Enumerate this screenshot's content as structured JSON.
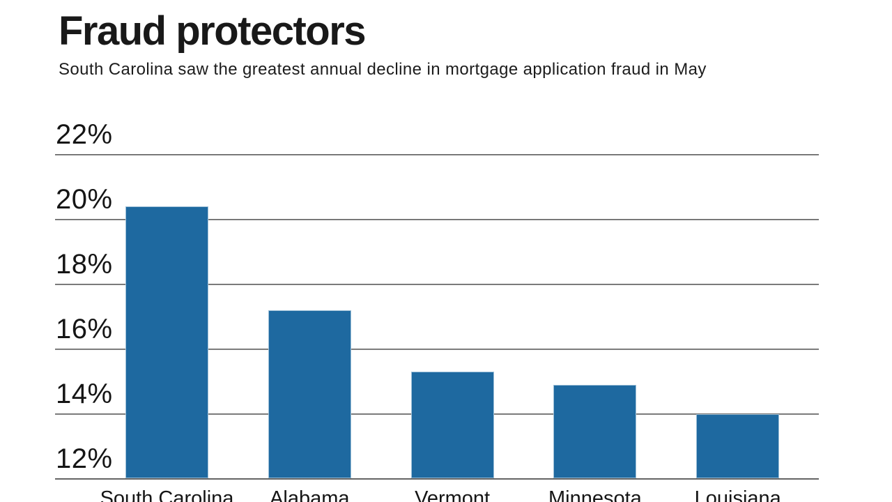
{
  "chart_data": {
    "type": "bar",
    "title": "Fraud protectors",
    "subtitle": "South Carolina saw the greatest annual decline in mortgage application fraud in May",
    "categories": [
      "South Carolina",
      "Alabama",
      "Vermont",
      "Minnesota",
      "Louisiana"
    ],
    "values": [
      20.4,
      17.2,
      15.3,
      14.9,
      14.0
    ],
    "value_unit": "%",
    "yticks": [
      22,
      20,
      18,
      16,
      14,
      12
    ],
    "ytick_labels": [
      "22%",
      "20%",
      "18%",
      "16%",
      "14%",
      "12%"
    ],
    "ylim": [
      12,
      22
    ],
    "xlabel": "",
    "ylabel": "",
    "grid": true,
    "legend": "none",
    "bar_color": "#1e69a0",
    "bar_edge_color": "#9ec0d8",
    "gridline_color": "#6b6b6b",
    "text_color": "#191919"
  }
}
